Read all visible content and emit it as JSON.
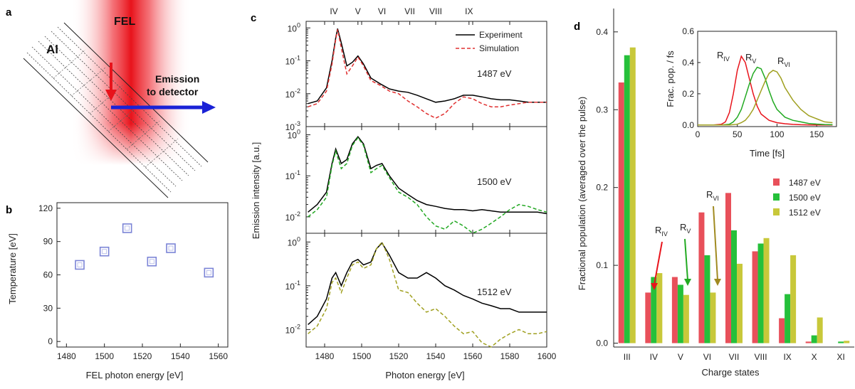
{
  "panels": {
    "a": {
      "letter": "a",
      "fel_label": "FEL",
      "al_label": "Al",
      "emission_line1": "Emission",
      "emission_line2": "to detector",
      "colors": {
        "beam": "#e8131b",
        "emission": "#1a22d6"
      }
    },
    "b": {
      "letter": "b"
    },
    "c": {
      "letter": "c",
      "top_ticks": [
        "IV",
        "V",
        "VI",
        "VII",
        "VIII",
        "IX"
      ],
      "subplot_labels": [
        "1487 eV",
        "1500 eV",
        "1512 eV"
      ]
    },
    "d": {
      "letter": "d"
    }
  },
  "chart_data": [
    {
      "id": "b",
      "type": "scatter",
      "title": "",
      "xlabel": "FEL photon energy [eV]",
      "ylabel": "Temperature [eV]",
      "xlim": [
        1475,
        1565
      ],
      "ylim": [
        -5,
        125
      ],
      "xticks": [
        1480,
        1500,
        1520,
        1540,
        1560
      ],
      "yticks": [
        0,
        30,
        60,
        90,
        120
      ],
      "marker": "open-square",
      "color": "#7b84d6",
      "points": [
        {
          "x": 1487,
          "y": 69
        },
        {
          "x": 1500,
          "y": 81
        },
        {
          "x": 1512,
          "y": 102
        },
        {
          "x": 1525,
          "y": 72
        },
        {
          "x": 1535,
          "y": 84
        },
        {
          "x": 1555,
          "y": 62
        }
      ]
    },
    {
      "id": "c",
      "type": "line",
      "xlabel": "Photon energy [eV]",
      "ylabel": "Emission intensity [a.u.]",
      "xlim": [
        1470,
        1600
      ],
      "xticks": [
        1480,
        1500,
        1520,
        1540,
        1560,
        1580,
        1600
      ],
      "yscale": "log",
      "legend": {
        "position": "top-right",
        "entries": [
          "Experiment",
          "Simulation"
        ]
      },
      "top_axis_positions_eV": [
        1485,
        1498,
        1511,
        1526,
        1540,
        1558
      ],
      "subplots": [
        {
          "label": "1487 eV",
          "ylim_exp": [
            -3,
            0.2
          ],
          "ytick_labels": [
            [
              "10",
              "0"
            ],
            [
              "10",
              "-1"
            ],
            [
              "10",
              "-2"
            ],
            [
              "10",
              "-3"
            ]
          ],
          "ytick_exps": [
            0,
            -1,
            -2,
            -3
          ],
          "series": [
            {
              "name": "Experiment",
              "color": "#000000",
              "x": [
                1471,
                1476,
                1481,
                1484,
                1486,
                1487,
                1489,
                1492,
                1495,
                1498,
                1501,
                1505,
                1510,
                1515,
                1520,
                1525,
                1530,
                1535,
                1540,
                1545,
                1550,
                1555,
                1560,
                1565,
                1570,
                1575,
                1580,
                1585,
                1590,
                1595,
                1600
              ],
              "y": [
                0.005,
                0.006,
                0.015,
                0.1,
                0.5,
                0.95,
                0.35,
                0.07,
                0.09,
                0.14,
                0.08,
                0.03,
                0.02,
                0.014,
                0.012,
                0.011,
                0.009,
                0.007,
                0.0055,
                0.006,
                0.007,
                0.009,
                0.009,
                0.008,
                0.007,
                0.0065,
                0.0065,
                0.006,
                0.0055,
                0.0055,
                0.0055
              ]
            },
            {
              "name": "Simulation",
              "color": "#e03030",
              "x": [
                1471,
                1476,
                1481,
                1484,
                1486,
                1487,
                1489,
                1492,
                1495,
                1498,
                1501,
                1505,
                1510,
                1515,
                1520,
                1525,
                1530,
                1535,
                1540,
                1545,
                1550,
                1555,
                1560,
                1565,
                1570,
                1575,
                1580,
                1585,
                1590,
                1595,
                1600
              ],
              "y": [
                0.004,
                0.005,
                0.012,
                0.08,
                0.45,
                0.9,
                0.25,
                0.04,
                0.07,
                0.13,
                0.07,
                0.025,
                0.018,
                0.012,
                0.01,
                0.006,
                0.004,
                0.0025,
                0.0018,
                0.0025,
                0.005,
                0.008,
                0.007,
                0.005,
                0.004,
                0.004,
                0.0045,
                0.005,
                0.0055,
                0.0055,
                0.0055
              ]
            }
          ]
        },
        {
          "label": "1500 eV",
          "ylim_exp": [
            -2.4,
            0.2
          ],
          "ytick_labels": [
            [
              "10",
              "0"
            ],
            [
              "10",
              "-1"
            ],
            [
              "10",
              "-2"
            ]
          ],
          "ytick_exps": [
            0,
            -1,
            -2
          ],
          "series": [
            {
              "name": "Experiment",
              "color": "#000000",
              "x": [
                1471,
                1476,
                1481,
                1484,
                1486,
                1489,
                1492,
                1495,
                1498,
                1501,
                1505,
                1508,
                1511,
                1515,
                1520,
                1525,
                1530,
                1535,
                1540,
                1545,
                1550,
                1555,
                1560,
                1565,
                1570,
                1575,
                1580,
                1585,
                1590,
                1595,
                1600
              ],
              "y": [
                0.013,
                0.02,
                0.04,
                0.2,
                0.45,
                0.2,
                0.25,
                0.6,
                0.9,
                0.6,
                0.15,
                0.18,
                0.2,
                0.1,
                0.05,
                0.035,
                0.025,
                0.02,
                0.018,
                0.016,
                0.015,
                0.015,
                0.014,
                0.015,
                0.014,
                0.013,
                0.013,
                0.013,
                0.013,
                0.013,
                0.012
              ]
            },
            {
              "name": "Simulation",
              "color": "#22a822",
              "x": [
                1471,
                1476,
                1481,
                1484,
                1486,
                1489,
                1492,
                1495,
                1498,
                1501,
                1505,
                1508,
                1511,
                1515,
                1520,
                1525,
                1530,
                1535,
                1540,
                1545,
                1550,
                1555,
                1560,
                1565,
                1570,
                1575,
                1580,
                1585,
                1590,
                1595,
                1600
              ],
              "y": [
                0.01,
                0.015,
                0.03,
                0.18,
                0.4,
                0.15,
                0.2,
                0.55,
                0.85,
                0.55,
                0.12,
                0.15,
                0.18,
                0.09,
                0.04,
                0.03,
                0.02,
                0.01,
                0.006,
                0.005,
                0.008,
                0.006,
                0.004,
                0.005,
                0.007,
                0.01,
                0.015,
                0.02,
                0.018,
                0.015,
                0.013
              ]
            }
          ]
        },
        {
          "label": "1512 eV",
          "ylim_exp": [
            -2.4,
            0.2
          ],
          "ytick_labels": [
            [
              "10",
              "0"
            ],
            [
              "10",
              "-1"
            ],
            [
              "10",
              "-2"
            ]
          ],
          "ytick_exps": [
            0,
            -1,
            -2
          ],
          "series": [
            {
              "name": "Experiment",
              "color": "#000000",
              "x": [
                1471,
                1476,
                1481,
                1484,
                1486,
                1489,
                1492,
                1495,
                1498,
                1501,
                1505,
                1508,
                1511,
                1515,
                1520,
                1525,
                1530,
                1535,
                1540,
                1545,
                1550,
                1555,
                1560,
                1565,
                1570,
                1575,
                1580,
                1585,
                1590,
                1595,
                1600
              ],
              "y": [
                0.013,
                0.02,
                0.05,
                0.15,
                0.2,
                0.1,
                0.2,
                0.35,
                0.4,
                0.3,
                0.35,
                0.7,
                0.95,
                0.5,
                0.2,
                0.15,
                0.15,
                0.2,
                0.15,
                0.1,
                0.08,
                0.06,
                0.05,
                0.04,
                0.035,
                0.03,
                0.03,
                0.025,
                0.025,
                0.025,
                0.025
              ]
            },
            {
              "name": "Simulation",
              "color": "#a0a020",
              "x": [
                1471,
                1476,
                1481,
                1484,
                1486,
                1489,
                1492,
                1495,
                1498,
                1501,
                1505,
                1508,
                1511,
                1515,
                1520,
                1525,
                1530,
                1535,
                1540,
                1545,
                1550,
                1555,
                1560,
                1565,
                1570,
                1575,
                1580,
                1585,
                1590,
                1595,
                1600
              ],
              "y": [
                0.008,
                0.012,
                0.03,
                0.12,
                0.15,
                0.07,
                0.15,
                0.3,
                0.35,
                0.25,
                0.3,
                0.7,
                1.0,
                0.4,
                0.08,
                0.07,
                0.04,
                0.025,
                0.03,
                0.02,
                0.012,
                0.008,
                0.009,
                0.005,
                0.004,
                0.006,
                0.008,
                0.01,
                0.008,
                0.008,
                0.009
              ]
            }
          ]
        }
      ]
    },
    {
      "id": "d",
      "type": "bar",
      "xlabel": "Charge states",
      "ylabel": "Fractional population (averaged over the pulse)",
      "ylim": [
        -0.005,
        0.43
      ],
      "yticks": [
        0.0,
        0.1,
        0.2,
        0.3,
        0.4
      ],
      "ytick_labels": [
        "0.0",
        "0.1",
        "0.2",
        "0.3",
        "0.4"
      ],
      "categories": [
        "III",
        "IV",
        "V",
        "VI",
        "VII",
        "VIII",
        "IX",
        "X",
        "XI"
      ],
      "legend": {
        "position": "middle-right"
      },
      "series": [
        {
          "name": "1487 eV",
          "color": "#e8505a",
          "values": [
            0.335,
            0.065,
            0.085,
            0.168,
            0.193,
            0.118,
            0.032,
            0.002,
            0.0
          ]
        },
        {
          "name": "1500 eV",
          "color": "#25c03a",
          "values": [
            0.37,
            0.085,
            0.075,
            0.113,
            0.145,
            0.128,
            0.063,
            0.01,
            0.002
          ]
        },
        {
          "name": "1512 eV",
          "color": "#c8c83a",
          "values": [
            0.38,
            0.09,
            0.062,
            0.065,
            0.102,
            0.135,
            0.113,
            0.033,
            0.003
          ]
        }
      ],
      "annotations": [
        {
          "text": "R",
          "sub": "IV",
          "category": "IV",
          "color": "#e8131b"
        },
        {
          "text": "R",
          "sub": "V",
          "category": "V",
          "color": "#22aa22"
        },
        {
          "text": "R",
          "sub": "VI",
          "category": "VI",
          "color": "#a08a20"
        }
      ],
      "inset": {
        "type": "line",
        "xlabel": "Time [fs]",
        "ylabel": "Frac. pop. / fs",
        "xlim": [
          0,
          175
        ],
        "ylim": [
          -0.01,
          0.6
        ],
        "xticks": [
          0,
          50,
          100,
          150
        ],
        "yticks": [
          0.0,
          0.2,
          0.4,
          0.6
        ],
        "ytick_labels": [
          "0.0",
          "0.2",
          "0.4",
          "0.6"
        ],
        "series": [
          {
            "name": "R",
            "sub": "IV",
            "color": "#e8131b",
            "x": [
              0,
              20,
              30,
              35,
              40,
              45,
              50,
              55,
              60,
              65,
              70,
              75,
              80,
              90,
              100,
              110,
              120,
              130,
              140,
              150,
              160,
              170
            ],
            "y": [
              0,
              0,
              0.005,
              0.02,
              0.08,
              0.2,
              0.35,
              0.44,
              0.4,
              0.3,
              0.2,
              0.12,
              0.07,
              0.03,
              0.015,
              0.008,
              0.004,
              0.002,
              0.001,
              0,
              0,
              0
            ]
          },
          {
            "name": "R",
            "sub": "V",
            "color": "#22aa22",
            "x": [
              0,
              30,
              40,
              45,
              50,
              55,
              60,
              65,
              70,
              75,
              80,
              85,
              90,
              95,
              100,
              110,
              120,
              130,
              140,
              150,
              160,
              170
            ],
            "y": [
              0,
              0,
              0.005,
              0.02,
              0.05,
              0.1,
              0.18,
              0.26,
              0.33,
              0.37,
              0.36,
              0.3,
              0.22,
              0.15,
              0.1,
              0.05,
              0.03,
              0.02,
              0.01,
              0.006,
              0.003,
              0.002
            ]
          },
          {
            "name": "R",
            "sub": "VI",
            "color": "#a0a020",
            "x": [
              0,
              40,
              50,
              55,
              60,
              65,
              70,
              75,
              80,
              85,
              90,
              95,
              100,
              105,
              110,
              120,
              130,
              140,
              150,
              160,
              170
            ],
            "y": [
              0,
              0,
              0.005,
              0.015,
              0.03,
              0.06,
              0.1,
              0.16,
              0.22,
              0.28,
              0.33,
              0.35,
              0.34,
              0.3,
              0.24,
              0.16,
              0.1,
              0.06,
              0.04,
              0.02,
              0.015
            ]
          }
        ]
      }
    }
  ]
}
